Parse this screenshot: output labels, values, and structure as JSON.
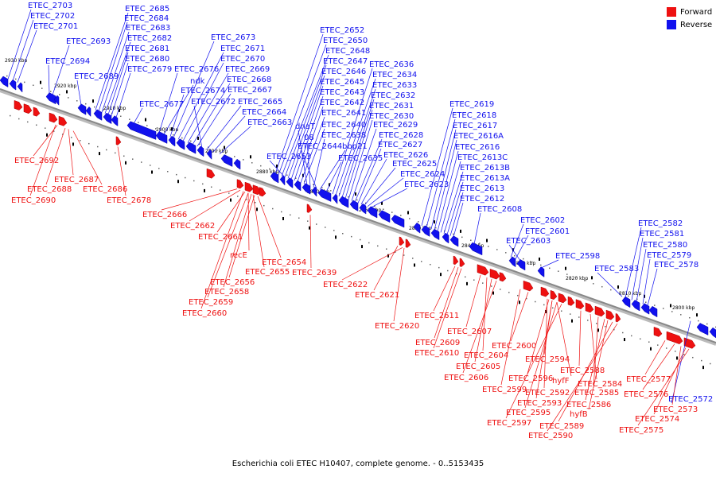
{
  "title": "Escherichia coli ETEC H10407, complete genome. - 0..5153435",
  "colors": {
    "forward": "#ee1111",
    "reverse": "#1111ee",
    "backbone": "#888888"
  },
  "legend": [
    {
      "label": "Forward",
      "color": "#ee1111"
    },
    {
      "label": "Reverse",
      "color": "#1111ee"
    }
  ],
  "ruler_labels": [
    "2930 kbp",
    "2920 kbp",
    "2910 kbp",
    "2900 kbp",
    "2890 kbp",
    "2880 kbp",
    "2870 kbp",
    "2860 kbp",
    "2850 kbp",
    "2840 kbp",
    "2830 kbp",
    "2820 kbp",
    "2810 kbp",
    "2800 kbp"
  ],
  "forward_labels": [
    "ETEC_2692",
    "ETEC_2690",
    "ETEC_2688",
    "ETEC_2687",
    "ETEC_2686",
    "ETEC_2678",
    "ETEC_2666",
    "ETEC_2662",
    "ETEC_2661",
    "recE",
    "ETEC_2655",
    "ETEC_2654",
    "ETEC_2656",
    "ETEC_2658",
    "ETEC_2659",
    "ETEC_2660",
    "ETEC_2639",
    "ETEC_2622",
    "ETEC_2621",
    "ETEC_2620",
    "ETEC_2611",
    "ETEC_2609",
    "ETEC_2610",
    "ETEC_2607",
    "ETEC_2604",
    "ETEC_2605",
    "ETEC_2606",
    "ETEC_2600",
    "ETEC_2599",
    "ETEC_2594",
    "ETEC_2596",
    "hyfF",
    "ETEC_2592",
    "ETEC_2593",
    "ETEC_2595",
    "ETEC_2597",
    "ETEC_2588",
    "ETEC_2584",
    "ETEC_2585",
    "ETEC_2586",
    "hyfB",
    "ETEC_2589",
    "ETEC_2590",
    "ETEC_2577",
    "ETEC_2576",
    "ETEC_2573",
    "ETEC_2574",
    "ETEC_2575"
  ],
  "reverse_labels": [
    "ETEC_2703",
    "ETEC_2702",
    "ETEC_2701",
    "ETEC_2693",
    "ETEC_2694",
    "ETEC_2689",
    "ETEC_2685",
    "ETEC_2684",
    "ETEC_2683",
    "ETEC_2682",
    "ETEC_2681",
    "ETEC_2680",
    "ETEC_2679",
    "ETEC_2677",
    "ETEC_2676",
    "ndk",
    "ETEC_2674",
    "ETEC_2673",
    "ETEC_2671",
    "ETEC_2670",
    "ETEC_2669",
    "ETEC_2668",
    "ETEC_2667",
    "ETEC_2672",
    "ETEC_2665",
    "ETEC_2664",
    "ETEC_2663",
    "ETEC_2652",
    "ETEC_2650",
    "ETEC_2648",
    "ETEC_2647",
    "ETEC_2646",
    "ETEC_2645",
    "ETEC_2643",
    "ETEC_2642",
    "ETEC_2641",
    "ETEC_2640",
    "dnaT",
    "08",
    "ETEC_2638",
    "ETEC_2644",
    "bbp21",
    "ETEC_2653",
    "ETEC_2635",
    "ETEC_2636",
    "ETEC_2634",
    "ETEC_2633",
    "ETEC_2632",
    "ETEC_2631",
    "ETEC_2630",
    "ETEC_2629",
    "ETEC_2628",
    "ETEC_2627",
    "ETEC_2626",
    "ETEC_2625",
    "ETEC_2624",
    "ETEC_2623",
    "ETEC_2619",
    "ETEC_2618",
    "ETEC_2617",
    "ETEC_2616A",
    "ETEC_2616",
    "ETEC_2613C",
    "ETEC_2613B",
    "ETEC_2613A",
    "ETEC_2613",
    "ETEC_2612",
    "ETEC_2608",
    "ETEC_2602",
    "ETEC_2601",
    "ETEC_2603",
    "ETEC_2598",
    "ETEC_2582",
    "ETEC_2581",
    "ETEC_2580",
    "ETEC_2579",
    "ETEC_2578",
    "ETEC_2583",
    "ETEC_2572"
  ]
}
